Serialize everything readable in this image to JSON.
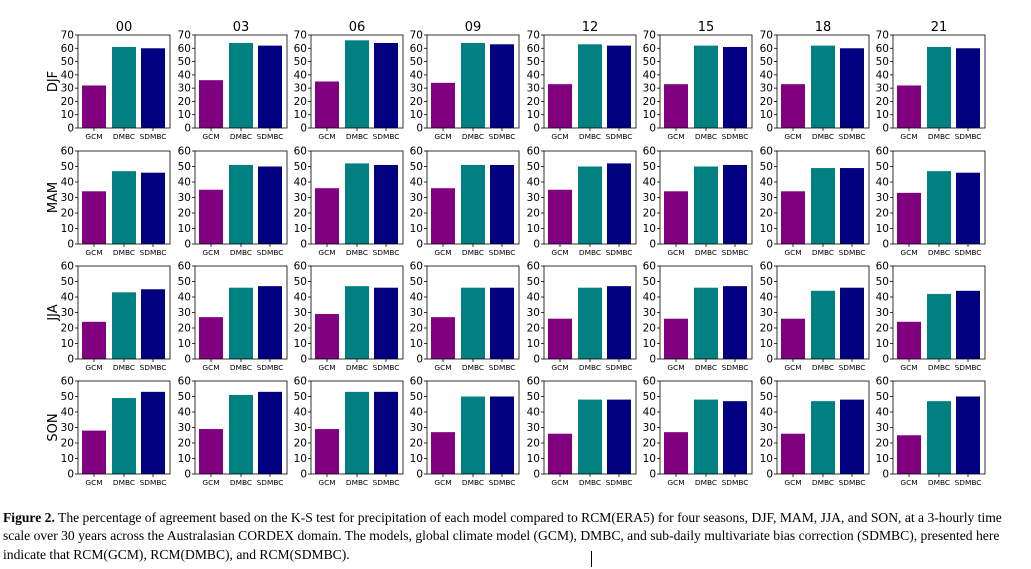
{
  "chart_data": {
    "type": "bar",
    "column_titles": [
      "00",
      "03",
      "06",
      "09",
      "12",
      "15",
      "18",
      "21"
    ],
    "categories": [
      "GCM",
      "DMBC",
      "SDMBC"
    ],
    "colors": {
      "GCM": "#800080",
      "DMBC": "#008080",
      "SDMBC": "#000080"
    },
    "rows": [
      {
        "label": "DJF",
        "ylim": [
          0,
          70
        ],
        "yticks": [
          "0",
          "10",
          "20",
          "30",
          "40",
          "50",
          "60",
          "70"
        ],
        "panels": [
          {
            "values": [
              32,
              61,
              60
            ]
          },
          {
            "values": [
              36,
              64,
              62
            ]
          },
          {
            "values": [
              35,
              66,
              64
            ]
          },
          {
            "values": [
              34,
              64,
              63
            ]
          },
          {
            "values": [
              33,
              63,
              62
            ]
          },
          {
            "values": [
              33,
              62,
              61
            ]
          },
          {
            "values": [
              33,
              62,
              60
            ]
          },
          {
            "values": [
              32,
              61,
              60
            ]
          }
        ]
      },
      {
        "label": "MAM",
        "ylim": [
          0,
          60
        ],
        "yticks": [
          "0",
          "10",
          "20",
          "30",
          "40",
          "50",
          "60"
        ],
        "panels": [
          {
            "values": [
              34,
              47,
              46
            ]
          },
          {
            "values": [
              35,
              51,
              50
            ]
          },
          {
            "values": [
              36,
              52,
              51
            ]
          },
          {
            "values": [
              36,
              51,
              51
            ]
          },
          {
            "values": [
              35,
              50,
              52
            ]
          },
          {
            "values": [
              34,
              50,
              51
            ]
          },
          {
            "values": [
              34,
              49,
              49
            ]
          },
          {
            "values": [
              33,
              47,
              46
            ]
          }
        ]
      },
      {
        "label": "JJA",
        "ylim": [
          0,
          60
        ],
        "yticks": [
          "0",
          "10",
          "20",
          "30",
          "40",
          "50",
          "60"
        ],
        "panels": [
          {
            "values": [
              24,
              43,
              45
            ]
          },
          {
            "values": [
              27,
              46,
              47
            ]
          },
          {
            "values": [
              29,
              47,
              46
            ]
          },
          {
            "values": [
              27,
              46,
              46
            ]
          },
          {
            "values": [
              26,
              46,
              47
            ]
          },
          {
            "values": [
              26,
              46,
              47
            ]
          },
          {
            "values": [
              26,
              44,
              46
            ]
          },
          {
            "values": [
              24,
              42,
              44
            ]
          }
        ]
      },
      {
        "label": "SON",
        "ylim": [
          0,
          60
        ],
        "yticks": [
          "0",
          "10",
          "20",
          "30",
          "40",
          "50",
          "60"
        ],
        "panels": [
          {
            "values": [
              28,
              49,
              53
            ]
          },
          {
            "values": [
              29,
              51,
              53
            ]
          },
          {
            "values": [
              29,
              53,
              53
            ]
          },
          {
            "values": [
              27,
              50,
              50
            ]
          },
          {
            "values": [
              26,
              48,
              48
            ]
          },
          {
            "values": [
              27,
              48,
              47
            ]
          },
          {
            "values": [
              26,
              47,
              48
            ]
          },
          {
            "values": [
              25,
              47,
              50
            ]
          }
        ]
      }
    ]
  },
  "caption": {
    "label": "Figure 2.",
    "text": "The percentage of agreement based on the K-S test for precipitation of each model compared to RCM(ERA5) for four seasons, DJF, MAM, JJA, and SON, at a 3-hourly time scale over 30 years across the Australasian CORDEX domain. The models, global climate model (GCM), DMBC, and sub-daily multivariate bias correction (SDMBC), presented here indicate that RCM(GCM), RCM(DMBC), and RCM(SDMBC)."
  }
}
